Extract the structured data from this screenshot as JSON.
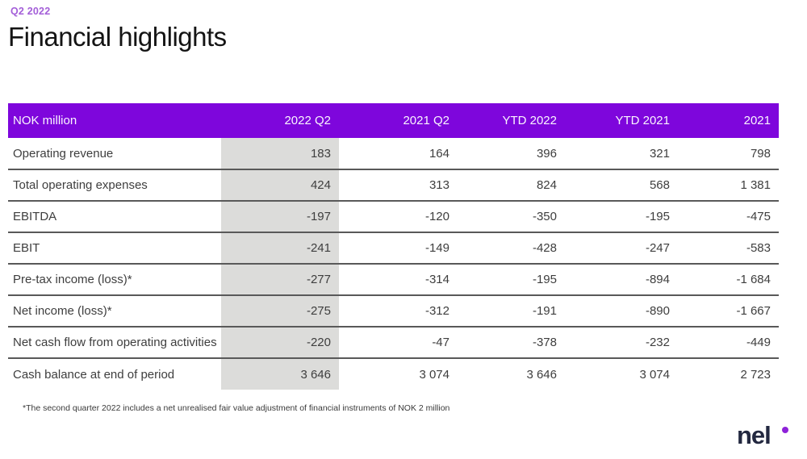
{
  "page": {
    "eyebrow": "Q2 2022",
    "title": "Financial highlights",
    "footnote": "*The second quarter 2022 includes a net unrealised fair value adjustment of financial instruments of NOK 2 million",
    "logo_text": "nel"
  },
  "colors": {
    "header_bg": "#7e06dc",
    "header_text": "#faf5fe",
    "highlight_column_bg": "#dcdcda",
    "row_border": "#595959",
    "eyebrow_purple": "#a35ed8",
    "logo_dot": "#8e22d9"
  },
  "table": {
    "highlight_column": "2022 Q2",
    "columns": [
      "NOK million",
      "2022 Q2",
      "2021 Q2",
      "YTD 2022",
      "YTD 2021",
      "2021"
    ],
    "rows": [
      {
        "label": "Operating revenue",
        "values": [
          "183",
          "164",
          "396",
          "321",
          "798"
        ]
      },
      {
        "label": "Total operating expenses",
        "values": [
          "424",
          "313",
          "824",
          "568",
          "1 381"
        ]
      },
      {
        "label": "EBITDA",
        "values": [
          "-197",
          "-120",
          "-350",
          "-195",
          "-475"
        ]
      },
      {
        "label": "EBIT",
        "values": [
          "-241",
          "-149",
          "-428",
          "-247",
          "-583"
        ]
      },
      {
        "label": "Pre-tax income (loss)*",
        "values": [
          "-277",
          "-314",
          "-195",
          "-894",
          "-1 684"
        ]
      },
      {
        "label": "Net income (loss)*",
        "values": [
          "-275",
          "-312",
          "-191",
          "-890",
          "-1 667"
        ]
      },
      {
        "label": "Net cash flow from operating activities",
        "values": [
          "-220",
          "-47",
          "-378",
          "-232",
          "-449"
        ]
      },
      {
        "label": "Cash balance at end of period",
        "values": [
          "3 646",
          "3 074",
          "3 646",
          "3 074",
          "2 723"
        ]
      }
    ]
  }
}
